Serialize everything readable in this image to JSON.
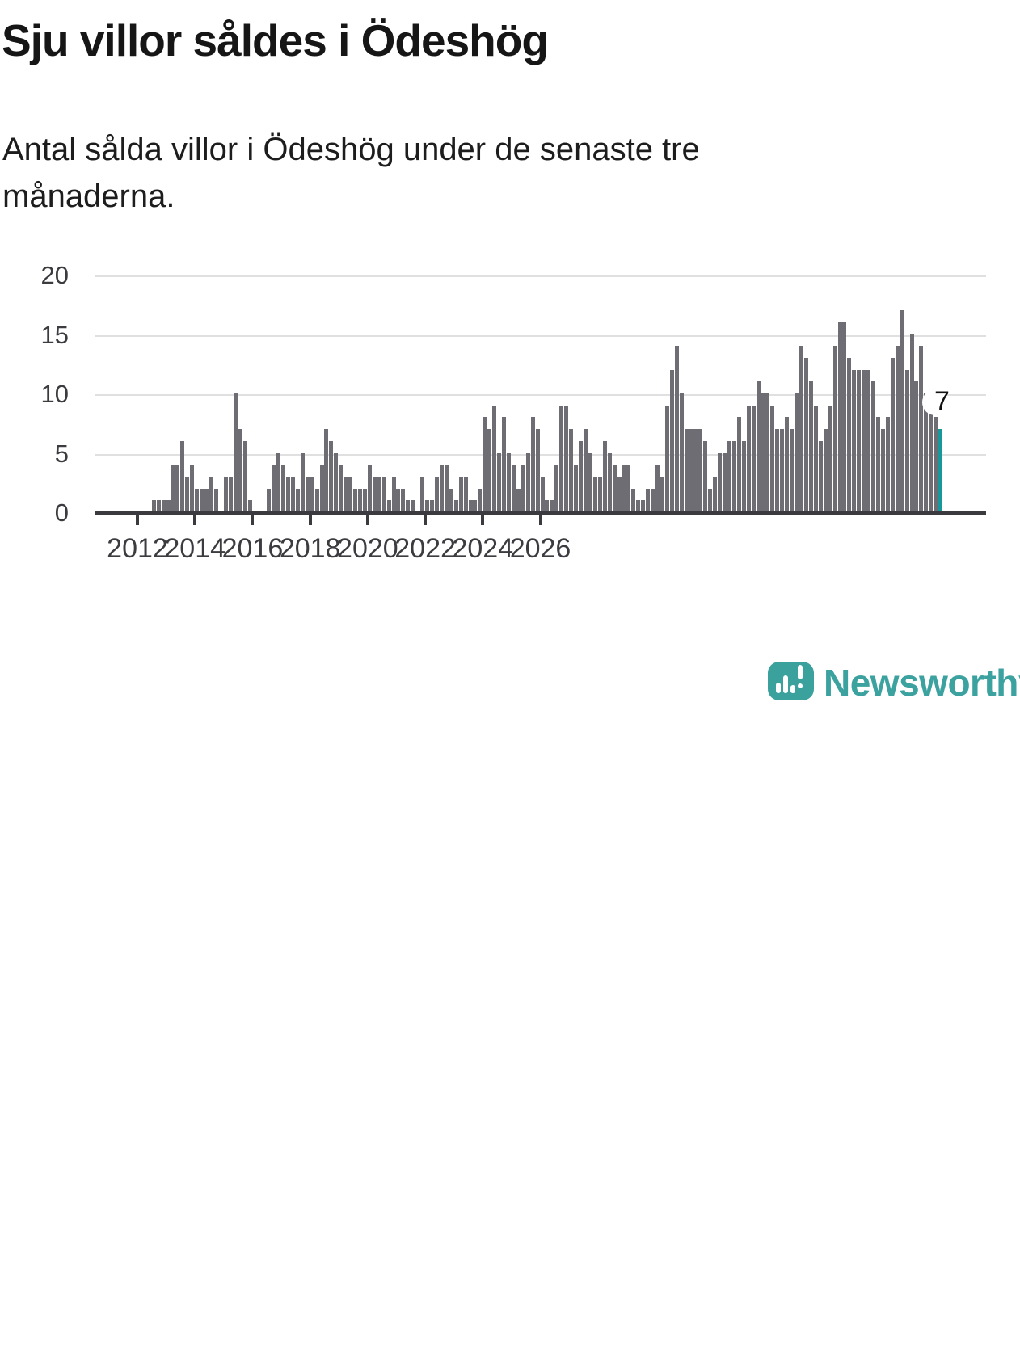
{
  "header": {
    "title": "Sju villor såldes i Ödeshög",
    "subtitle": "Antal sålda villor i Ödeshög under de senaste tre månaderna."
  },
  "chart_data": {
    "type": "bar",
    "title": "Sju villor såldes i Ödeshög",
    "xlabel": "",
    "ylabel": "",
    "x_start": "2012-01",
    "months_per_bar": 1,
    "x_tick_labels": [
      "2012",
      "2014",
      "2016",
      "2018",
      "2020",
      "2022",
      "2024",
      "2026"
    ],
    "y_tick_labels": [
      "0",
      "5",
      "10",
      "15",
      "20"
    ],
    "y_ticks": [
      0,
      5,
      10,
      15,
      20
    ],
    "ylim": [
      0,
      20
    ],
    "grid": "horizontal",
    "legend": "none",
    "values": [
      0,
      0,
      0,
      1,
      1,
      1,
      1,
      4,
      4,
      6,
      3,
      4,
      2,
      2,
      2,
      3,
      2,
      0,
      3,
      3,
      10,
      7,
      6,
      1,
      0,
      0,
      0,
      2,
      4,
      5,
      4,
      3,
      3,
      2,
      5,
      3,
      3,
      2,
      4,
      7,
      6,
      5,
      4,
      3,
      3,
      2,
      2,
      2,
      4,
      3,
      3,
      3,
      1,
      3,
      2,
      2,
      1,
      1,
      0,
      3,
      1,
      1,
      3,
      4,
      4,
      2,
      1,
      3,
      3,
      1,
      1,
      2,
      8,
      7,
      9,
      5,
      8,
      5,
      4,
      2,
      4,
      5,
      8,
      7,
      3,
      1,
      1,
      4,
      9,
      9,
      7,
      4,
      6,
      7,
      5,
      3,
      3,
      6,
      5,
      4,
      3,
      4,
      4,
      2,
      1,
      1,
      2,
      2,
      4,
      3,
      9,
      12,
      14,
      10,
      7,
      7,
      7,
      7,
      6,
      2,
      3,
      5,
      5,
      6,
      6,
      8,
      6,
      9,
      9,
      11,
      10,
      10,
      9,
      7,
      7,
      8,
      7,
      10,
      14,
      13,
      11,
      9,
      6,
      7,
      9,
      14,
      16,
      16,
      13,
      12,
      12,
      12,
      12,
      11,
      8,
      7,
      8,
      13,
      14,
      17,
      12,
      15,
      11,
      14,
      10,
      9,
      8,
      7
    ],
    "highlight_last_bar": true,
    "last_value_label": "7",
    "colors": {
      "bar": "#6f6d74",
      "highlight": "#17989b",
      "axis": "#3b3b3f",
      "grid": "#e0e0e0",
      "tick_text": "#3c3c40"
    }
  },
  "annotation": {
    "last_value": "7"
  },
  "footer": {
    "brand": "Newsworthy",
    "logo_color": "#3aa19d",
    "wordmark_color": "#3ba29f"
  }
}
